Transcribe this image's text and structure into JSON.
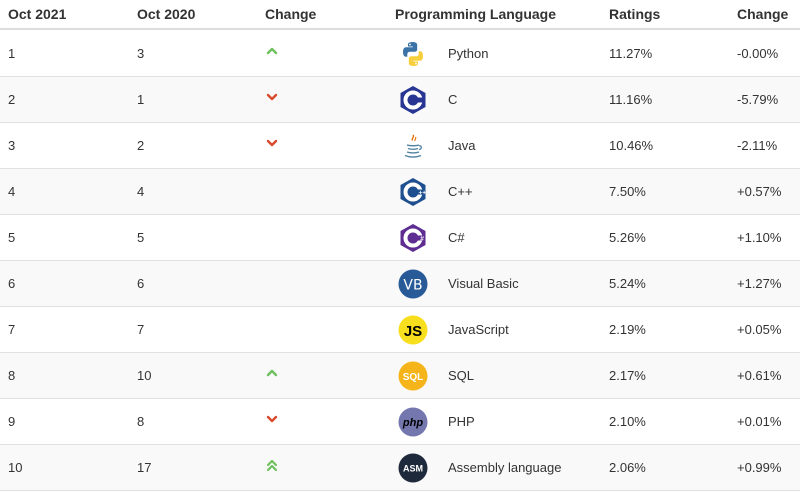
{
  "headers": {
    "current": "Oct 2021",
    "previous": "Oct 2020",
    "change": "Change",
    "language": "Programming Language",
    "ratings": "Ratings",
    "ratings_change": "Change"
  },
  "colors": {
    "up": "#6fbf5e",
    "down": "#d9492c",
    "border": "#dddddd",
    "row_alt": "#f9f9f9"
  },
  "rows": [
    {
      "rank": "1",
      "prev": "3",
      "change": "up",
      "language": "Python",
      "logo": "python-logo-icon",
      "rating": "11.27%",
      "delta": "-0.00%"
    },
    {
      "rank": "2",
      "prev": "1",
      "change": "down",
      "language": "C",
      "logo": "c-logo-icon",
      "rating": "11.16%",
      "delta": "-5.79%"
    },
    {
      "rank": "3",
      "prev": "2",
      "change": "down",
      "language": "Java",
      "logo": "java-logo-icon",
      "rating": "10.46%",
      "delta": "-2.11%"
    },
    {
      "rank": "4",
      "prev": "4",
      "change": "none",
      "language": "C++",
      "logo": "cpp-logo-icon",
      "rating": "7.50%",
      "delta": "+0.57%"
    },
    {
      "rank": "5",
      "prev": "5",
      "change": "none",
      "language": "C#",
      "logo": "csharp-logo-icon",
      "rating": "5.26%",
      "delta": "+1.10%"
    },
    {
      "rank": "6",
      "prev": "6",
      "change": "none",
      "language": "Visual Basic",
      "logo": "vb-logo-icon",
      "logo_text": "VB",
      "rating": "5.24%",
      "delta": "+1.27%"
    },
    {
      "rank": "7",
      "prev": "7",
      "change": "none",
      "language": "JavaScript",
      "logo": "js-logo-icon",
      "logo_text": "JS",
      "rating": "2.19%",
      "delta": "+0.05%"
    },
    {
      "rank": "8",
      "prev": "10",
      "change": "up",
      "language": "SQL",
      "logo": "sql-logo-icon",
      "logo_text": "SQL",
      "rating": "2.17%",
      "delta": "+0.61%"
    },
    {
      "rank": "9",
      "prev": "8",
      "change": "down",
      "language": "PHP",
      "logo": "php-logo-icon",
      "logo_text": "php",
      "rating": "2.10%",
      "delta": "+0.01%"
    },
    {
      "rank": "10",
      "prev": "17",
      "change": "double-up",
      "language": "Assembly language",
      "logo": "asm-logo-icon",
      "logo_text": "ASM",
      "rating": "2.06%",
      "delta": "+0.99%"
    }
  ]
}
